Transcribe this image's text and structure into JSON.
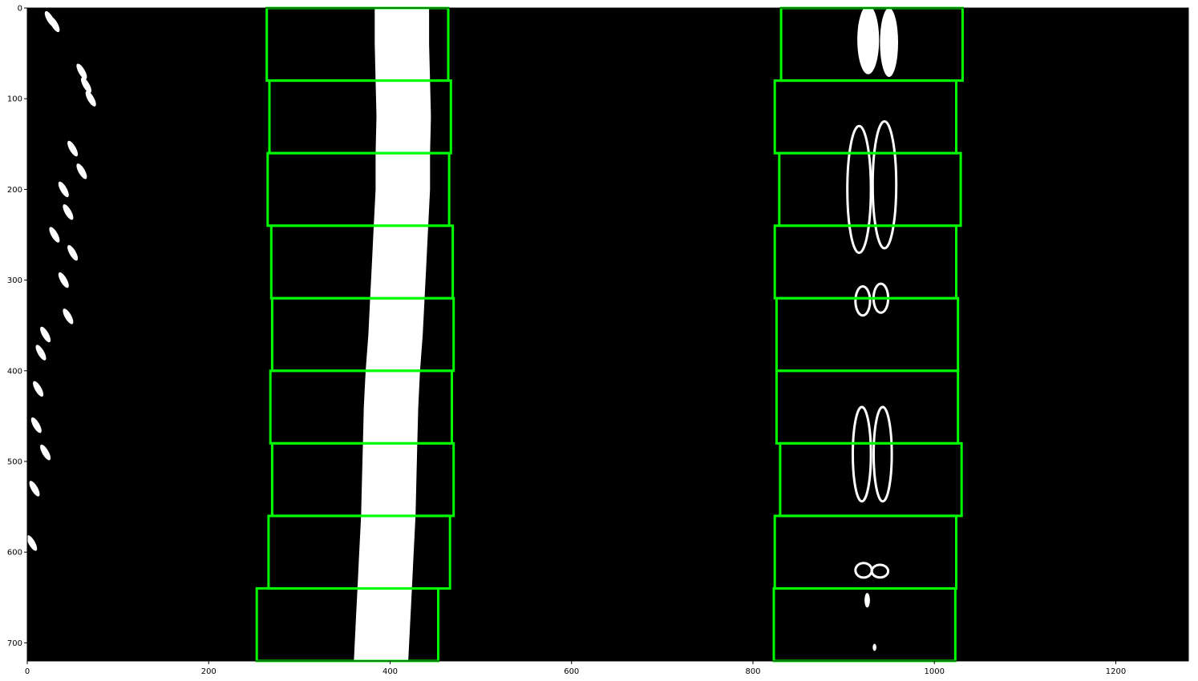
{
  "chart_data": {
    "type": "image",
    "xlim": [
      0,
      1280
    ],
    "ylim": [
      720,
      0
    ],
    "xticks": [
      0,
      200,
      400,
      600,
      800,
      1000,
      1200
    ],
    "yticks": [
      0,
      100,
      200,
      300,
      400,
      500,
      600,
      700
    ],
    "xtick_labels": [
      "0",
      "200",
      "400",
      "600",
      "800",
      "1000",
      "1200"
    ],
    "ytick_labels": [
      "0",
      "100",
      "200",
      "300",
      "400",
      "500",
      "600",
      "700"
    ],
    "colors": {
      "background": "#000000",
      "lane_pixels": "#ffffff",
      "window_box": "#00ff00"
    },
    "windows": [
      {
        "side": "left",
        "x0": 253,
        "x1": 453,
        "y0": 640,
        "y1": 720
      },
      {
        "side": "left",
        "x0": 266,
        "x1": 466,
        "y0": 560,
        "y1": 640
      },
      {
        "side": "left",
        "x0": 270,
        "x1": 470,
        "y0": 480,
        "y1": 560
      },
      {
        "side": "left",
        "x0": 268,
        "x1": 468,
        "y0": 400,
        "y1": 480
      },
      {
        "side": "left",
        "x0": 270,
        "x1": 470,
        "y0": 320,
        "y1": 400
      },
      {
        "side": "left",
        "x0": 269,
        "x1": 469,
        "y0": 240,
        "y1": 320
      },
      {
        "side": "left",
        "x0": 265,
        "x1": 465,
        "y0": 160,
        "y1": 240
      },
      {
        "side": "left",
        "x0": 267,
        "x1": 467,
        "y0": 80,
        "y1": 160
      },
      {
        "side": "left",
        "x0": 264,
        "x1": 464,
        "y0": 0,
        "y1": 80
      },
      {
        "side": "right",
        "x0": 823,
        "x1": 1023,
        "y0": 640,
        "y1": 720
      },
      {
        "side": "right",
        "x0": 824,
        "x1": 1024,
        "y0": 560,
        "y1": 640
      },
      {
        "side": "right",
        "x0": 830,
        "x1": 1030,
        "y0": 480,
        "y1": 560
      },
      {
        "side": "right",
        "x0": 826,
        "x1": 1026,
        "y0": 400,
        "y1": 480
      },
      {
        "side": "right",
        "x0": 826,
        "x1": 1026,
        "y0": 320,
        "y1": 400
      },
      {
        "side": "right",
        "x0": 824,
        "x1": 1024,
        "y0": 240,
        "y1": 320
      },
      {
        "side": "right",
        "x0": 829,
        "x1": 1029,
        "y0": 160,
        "y1": 240
      },
      {
        "side": "right",
        "x0": 824,
        "x1": 1024,
        "y0": 80,
        "y1": 160
      },
      {
        "side": "right",
        "x0": 831,
        "x1": 1031,
        "y0": 0,
        "y1": 80
      }
    ],
    "left_lane_center": [
      [
        413,
        0
      ],
      [
        413,
        40
      ],
      [
        414,
        80
      ],
      [
        415,
        120
      ],
      [
        414,
        160
      ],
      [
        414,
        200
      ],
      [
        412,
        240
      ],
      [
        410,
        280
      ],
      [
        408,
        320
      ],
      [
        406,
        360
      ],
      [
        403,
        400
      ],
      [
        401,
        440
      ],
      [
        400,
        480
      ],
      [
        399,
        520
      ],
      [
        398,
        560
      ],
      [
        396,
        600
      ],
      [
        394,
        640
      ],
      [
        392,
        680
      ],
      [
        390,
        720
      ]
    ],
    "left_lane_width": 60,
    "left_edge_specks": [
      [
        25,
        12
      ],
      [
        30,
        18
      ],
      [
        60,
        70
      ],
      [
        65,
        85
      ],
      [
        70,
        100
      ],
      [
        50,
        155
      ],
      [
        60,
        180
      ],
      [
        40,
        200
      ],
      [
        45,
        225
      ],
      [
        30,
        250
      ],
      [
        50,
        270
      ],
      [
        40,
        300
      ],
      [
        45,
        340
      ],
      [
        20,
        360
      ],
      [
        15,
        380
      ],
      [
        12,
        420
      ],
      [
        10,
        460
      ],
      [
        20,
        490
      ],
      [
        8,
        530
      ],
      [
        5,
        590
      ]
    ],
    "right_dashes": [
      {
        "cx": 927,
        "cy": 35,
        "rx": 12,
        "ry": 38
      },
      {
        "cx": 950,
        "cy": 38,
        "rx": 10,
        "ry": 38
      },
      {
        "cx": 917,
        "cy": 200,
        "rx": 13,
        "ry": 70,
        "outline": true
      },
      {
        "cx": 945,
        "cy": 195,
        "rx": 13,
        "ry": 70,
        "outline": true
      },
      {
        "cx": 921,
        "cy": 323,
        "rx": 8,
        "ry": 16,
        "outline": true
      },
      {
        "cx": 941,
        "cy": 320,
        "rx": 8,
        "ry": 16,
        "outline": true
      },
      {
        "cx": 920,
        "cy": 492,
        "rx": 10,
        "ry": 52,
        "outline": true
      },
      {
        "cx": 943,
        "cy": 492,
        "rx": 10,
        "ry": 52,
        "outline": true
      },
      {
        "cx": 922,
        "cy": 620,
        "rx": 9,
        "ry": 8,
        "outline": true
      },
      {
        "cx": 940,
        "cy": 621,
        "rx": 9,
        "ry": 7,
        "outline": true
      },
      {
        "cx": 926,
        "cy": 653,
        "rx": 3,
        "ry": 8
      },
      {
        "cx": 934,
        "cy": 705,
        "rx": 2,
        "ry": 4
      }
    ]
  }
}
